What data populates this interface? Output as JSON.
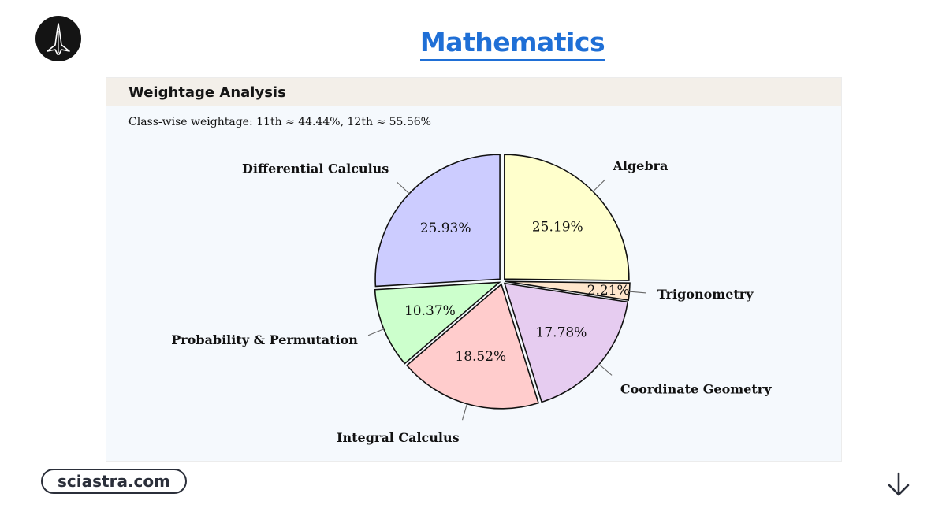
{
  "header": {
    "title": "Mathematics",
    "logo_icon": "rocket-logo-icon"
  },
  "card": {
    "header_title": "Weightage Analysis",
    "subtitle": "Class-wise weightage: 11th ≈ 44.44%, 12th ≈ 55.56%"
  },
  "chart_data": {
    "type": "pie",
    "title": "",
    "slices": [
      {
        "name": "Algebra",
        "value": 25.19,
        "label": "25.19%",
        "color": "#ffffcc"
      },
      {
        "name": "Trigonometry",
        "value": 2.21,
        "label": "2.21%",
        "color": "#ffe6cc"
      },
      {
        "name": "Coordinate Geometry",
        "value": 17.78,
        "label": "17.78%",
        "color": "#e6ccf0"
      },
      {
        "name": "Integral Calculus",
        "value": 18.52,
        "label": "18.52%",
        "color": "#ffcccc"
      },
      {
        "name": "Probability & Permutation",
        "value": 10.37,
        "label": "10.37%",
        "color": "#ccffcc"
      },
      {
        "name": "Differential Calculus",
        "value": 25.93,
        "label": "25.93%",
        "color": "#ccccff"
      }
    ],
    "start": "12 o'clock",
    "direction": "clockwise",
    "exploded": true
  },
  "footer": {
    "site": "sciastra.com",
    "arrow_icon": "down-arrow-icon"
  }
}
